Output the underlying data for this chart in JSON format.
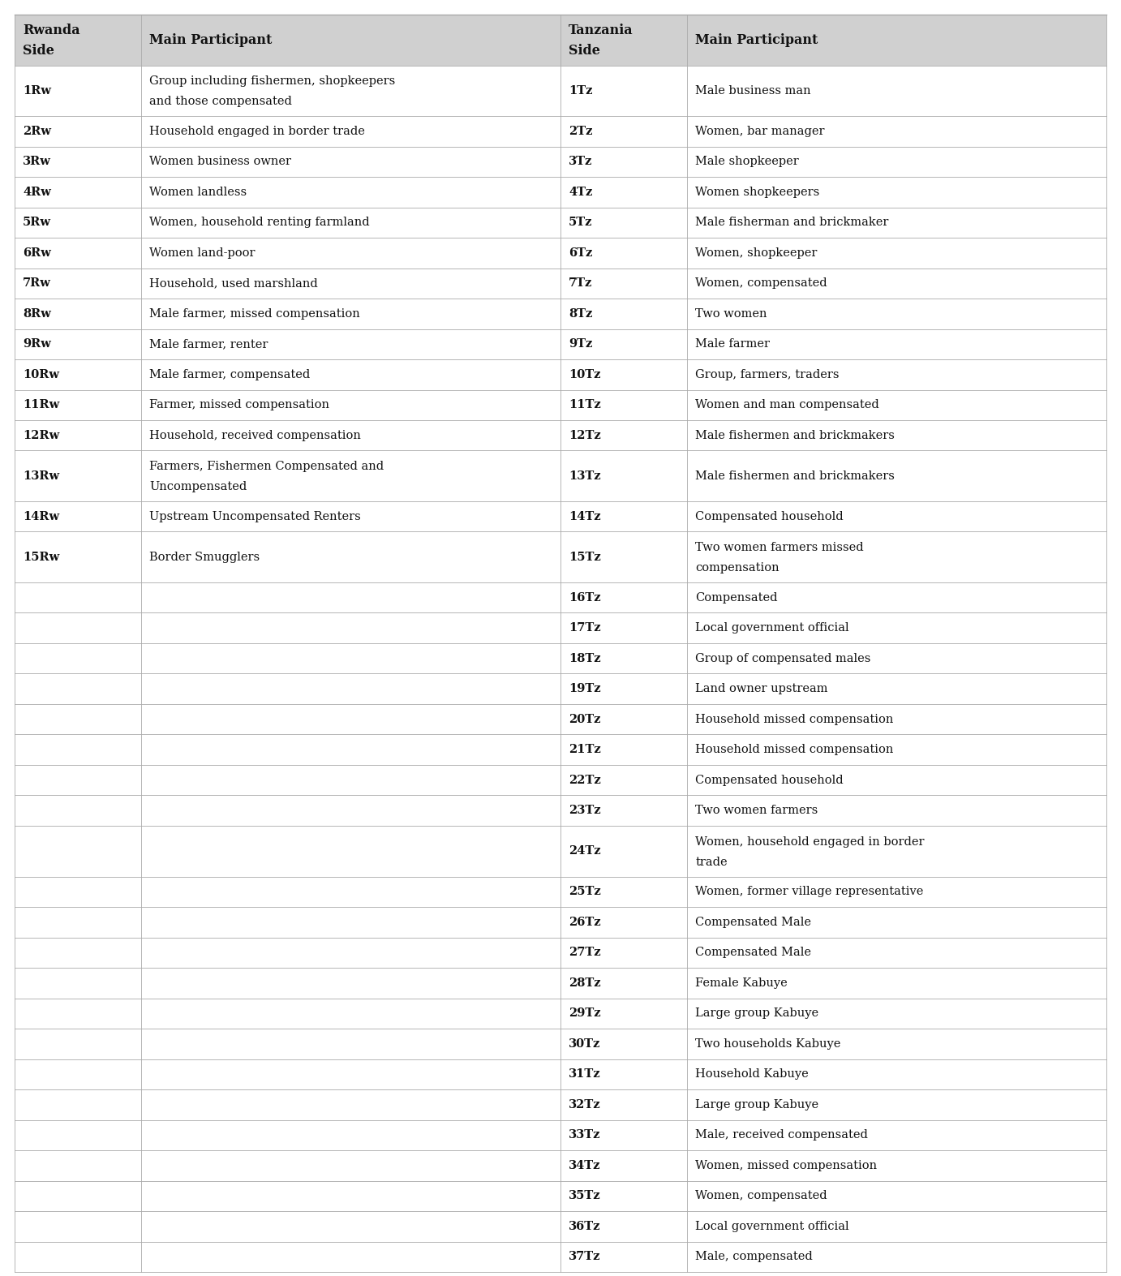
{
  "headers": [
    "Rwanda\nSide",
    "Main Participant",
    "Tanzania\nSide",
    "Main Participant"
  ],
  "rw_data": [
    [
      "1Rw",
      "Group including fishermen, shopkeepers\nand those compensated"
    ],
    [
      "2Rw",
      "Household engaged in border trade"
    ],
    [
      "3Rw",
      "Women business owner"
    ],
    [
      "4Rw",
      "Women landless"
    ],
    [
      "5Rw",
      "Women, household renting farmland"
    ],
    [
      "6Rw",
      "Women land-poor"
    ],
    [
      "7Rw",
      "Household, used marshland"
    ],
    [
      "8Rw",
      "Male farmer, missed compensation"
    ],
    [
      "9Rw",
      "Male farmer, renter"
    ],
    [
      "10Rw",
      "Male farmer, compensated"
    ],
    [
      "11Rw",
      "Farmer, missed compensation"
    ],
    [
      "12Rw",
      "Household, received compensation"
    ],
    [
      "13Rw",
      "Farmers, Fishermen Compensated and\nUncompensated"
    ],
    [
      "14Rw",
      "Upstream Uncompensated Renters"
    ],
    [
      "15Rw",
      "Border Smugglers"
    ]
  ],
  "tz_data": [
    [
      "1Tz",
      "Male business man"
    ],
    [
      "2Tz",
      "Women, bar manager"
    ],
    [
      "3Tz",
      "Male shopkeeper"
    ],
    [
      "4Tz",
      "Women shopkeepers"
    ],
    [
      "5Tz",
      "Male fisherman and brickmaker"
    ],
    [
      "6Tz",
      "Women, shopkeeper"
    ],
    [
      "7Tz",
      "Women, compensated"
    ],
    [
      "8Tz",
      "Two women"
    ],
    [
      "9Tz",
      "Male farmer"
    ],
    [
      "10Tz",
      "Group, farmers, traders"
    ],
    [
      "11Tz",
      "Women and man compensated"
    ],
    [
      "12Tz",
      "Male fishermen and brickmakers"
    ],
    [
      "13Tz",
      "Male fishermen and brickmakers"
    ],
    [
      "14Tz",
      "Compensated household"
    ],
    [
      "15Tz",
      "Two women farmers missed\ncompensation"
    ],
    [
      "16Tz",
      "Compensated"
    ],
    [
      "17Tz",
      "Local government official"
    ],
    [
      "18Tz",
      "Group of compensated males"
    ],
    [
      "19Tz",
      "Land owner upstream"
    ],
    [
      "20Tz",
      "Household missed compensation"
    ],
    [
      "21Tz",
      "Household missed compensation"
    ],
    [
      "22Tz",
      "Compensated household"
    ],
    [
      "23Tz",
      "Two women farmers"
    ],
    [
      "24Tz",
      "Women, household engaged in border\ntrade"
    ],
    [
      "25Tz",
      "Women, former village representative"
    ],
    [
      "26Tz",
      "Compensated Male"
    ],
    [
      "27Tz",
      "Compensated Male"
    ],
    [
      "28Tz",
      "Female Kabuye"
    ],
    [
      "29Tz",
      "Large group Kabuye"
    ],
    [
      "30Tz",
      "Two households Kabuye"
    ],
    [
      "31Tz",
      "Household Kabuye"
    ],
    [
      "32Tz",
      "Large group Kabuye"
    ],
    [
      "33Tz",
      "Male, received compensated"
    ],
    [
      "34Tz",
      "Women, missed compensation"
    ],
    [
      "35Tz",
      "Women, compensated"
    ],
    [
      "36Tz",
      "Local government official"
    ],
    [
      "37Tz",
      "Male, compensated"
    ]
  ],
  "bg_color": "#ffffff",
  "header_bg": "#d0d0d0",
  "line_color": "#aaaaaa",
  "text_color": "#111111",
  "font_size": 10.5,
  "header_font_size": 11.5
}
